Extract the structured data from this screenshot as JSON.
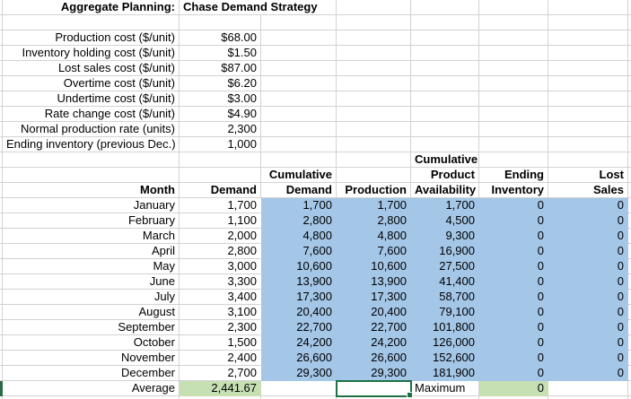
{
  "sheet": {
    "title": {
      "label": "Aggregate Planning:",
      "value": "Chase Demand Strategy"
    },
    "parameters": [
      {
        "label": "Production cost ($/unit)",
        "value": "$68.00"
      },
      {
        "label": "Inventory holding cost ($/unit)",
        "value": "$1.50"
      },
      {
        "label": "Lost sales cost ($/unit)",
        "value": "$87.00"
      },
      {
        "label": "Overtime cost ($/unit)",
        "value": "$6.20"
      },
      {
        "label": "Undertime cost ($/unit)",
        "value": "$3.00"
      },
      {
        "label": "Rate change cost ($/unit)",
        "value": "$4.90"
      },
      {
        "label": "Normal production rate (units)",
        "value": "2,300"
      },
      {
        "label": "Ending inventory (previous Dec.)",
        "value": "1,000"
      }
    ],
    "table": {
      "headers": {
        "row1": {
          "availability": "Cumulative"
        },
        "row2": {
          "cum_demand": "Cumulative",
          "availability": "Product",
          "ending": "Ending",
          "lost": "Lost"
        },
        "row3": {
          "month": "Month",
          "demand": "Demand",
          "cum_demand": "Demand",
          "production": "Production",
          "availability": "Availability",
          "ending": "Inventory",
          "lost": "Sales"
        }
      },
      "rows": [
        {
          "month": "January",
          "demand": "1,700",
          "cum_demand": "1,700",
          "production": "1,700",
          "availability": "1,700",
          "ending": "0",
          "lost": "0"
        },
        {
          "month": "February",
          "demand": "1,100",
          "cum_demand": "2,800",
          "production": "2,800",
          "availability": "4,500",
          "ending": "0",
          "lost": "0"
        },
        {
          "month": "March",
          "demand": "2,000",
          "cum_demand": "4,800",
          "production": "4,800",
          "availability": "9,300",
          "ending": "0",
          "lost": "0"
        },
        {
          "month": "April",
          "demand": "2,800",
          "cum_demand": "7,600",
          "production": "7,600",
          "availability": "16,900",
          "ending": "0",
          "lost": "0"
        },
        {
          "month": "May",
          "demand": "3,000",
          "cum_demand": "10,600",
          "production": "10,600",
          "availability": "27,500",
          "ending": "0",
          "lost": "0"
        },
        {
          "month": "June",
          "demand": "3,300",
          "cum_demand": "13,900",
          "production": "13,900",
          "availability": "41,400",
          "ending": "0",
          "lost": "0"
        },
        {
          "month": "July",
          "demand": "3,400",
          "cum_demand": "17,300",
          "production": "17,300",
          "availability": "58,700",
          "ending": "0",
          "lost": "0"
        },
        {
          "month": "August",
          "demand": "3,100",
          "cum_demand": "20,400",
          "production": "20,400",
          "availability": "79,100",
          "ending": "0",
          "lost": "0"
        },
        {
          "month": "September",
          "demand": "2,300",
          "cum_demand": "22,700",
          "production": "22,700",
          "availability": "101,800",
          "ending": "0",
          "lost": "0"
        },
        {
          "month": "October",
          "demand": "1,500",
          "cum_demand": "24,200",
          "production": "24,200",
          "availability": "126,000",
          "ending": "0",
          "lost": "0"
        },
        {
          "month": "November",
          "demand": "2,400",
          "cum_demand": "26,600",
          "production": "26,600",
          "availability": "152,600",
          "ending": "0",
          "lost": "0"
        },
        {
          "month": "December",
          "demand": "2,700",
          "cum_demand": "29,300",
          "production": "29,300",
          "availability": "181,900",
          "ending": "0",
          "lost": "0"
        }
      ],
      "summary": {
        "label": "Average",
        "average_demand": "2,441.67",
        "maximum_label": "Maximum",
        "maximum_value": "0"
      }
    },
    "colors": {
      "highlight_blue": "#a4c6e7",
      "highlight_green": "#c6e0b4",
      "selection_border_green": "#1e7145",
      "row_indicator_green": "#2d6947",
      "gridline": "#d2d2d2"
    }
  }
}
